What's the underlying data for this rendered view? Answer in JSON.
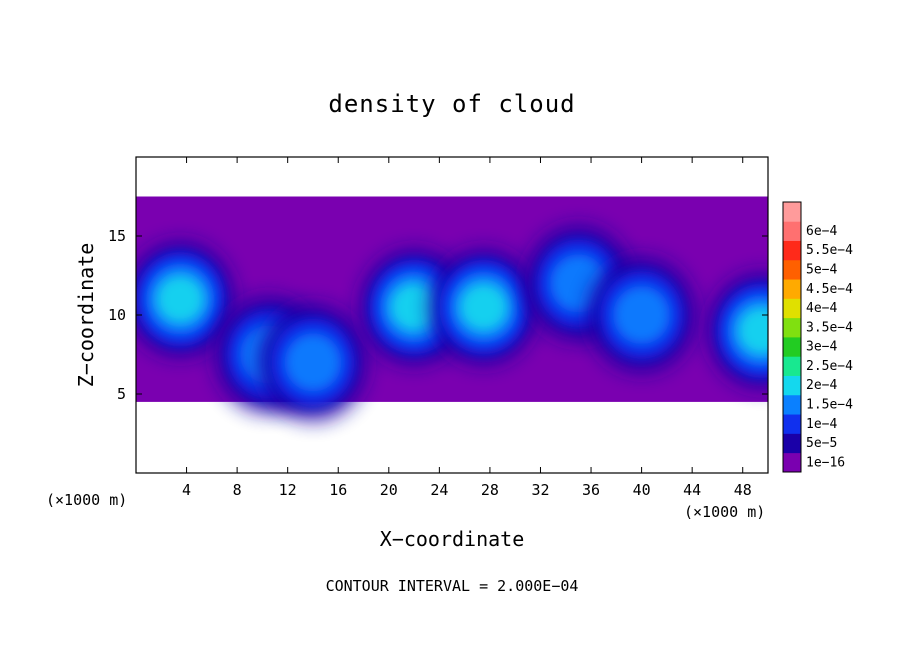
{
  "chart_data": {
    "type": "heatmap",
    "title": "density of cloud",
    "xlabel": "X−coordinate",
    "ylabel": "Z−coordinate",
    "x_unit": "(×1000 m)",
    "y_unit": "(×1000 m)",
    "xlim": [
      0,
      50
    ],
    "ylim": [
      0,
      20
    ],
    "x_ticks": [
      4,
      8,
      12,
      16,
      20,
      24,
      28,
      32,
      36,
      40,
      44,
      48
    ],
    "y_ticks": [
      5,
      10,
      15
    ],
    "colorbar": {
      "labels": [
        "1e−16",
        "5e−5",
        "1e−4",
        "1.5e−4",
        "2e−4",
        "2.5e−4",
        "3e−4",
        "3.5e−4",
        "4e−4",
        "4.5e−4",
        "5e−4",
        "5.5e−4",
        "6e−4"
      ],
      "colors": [
        "#7a00b0",
        "#1a00a8",
        "#1030ee",
        "#0a80ff",
        "#14d8ee",
        "#18e890",
        "#22cc22",
        "#80e010",
        "#e0e000",
        "#ffaa00",
        "#ff6000",
        "#ff2a1a",
        "#ff7070",
        "#ff9b9b"
      ]
    },
    "footer": "CONTOUR INTERVAL = 2.000E−04",
    "cloud_layer": {
      "base_z": 4.5,
      "top_z": 17.5
    },
    "cores": [
      {
        "x": 3.5,
        "z": 11.0,
        "value": 0.0002
      },
      {
        "x": 10.5,
        "z": 7.5,
        "value": 0.00015
      },
      {
        "x": 14.0,
        "z": 7.0,
        "value": 0.00015
      },
      {
        "x": 22.0,
        "z": 10.5,
        "value": 0.0002
      },
      {
        "x": 27.5,
        "z": 10.5,
        "value": 0.0002
      },
      {
        "x": 35.0,
        "z": 12.0,
        "value": 0.00015
      },
      {
        "x": 40.0,
        "z": 10.0,
        "value": 0.00015
      },
      {
        "x": 49.5,
        "z": 9.0,
        "value": 0.0002
      }
    ]
  }
}
